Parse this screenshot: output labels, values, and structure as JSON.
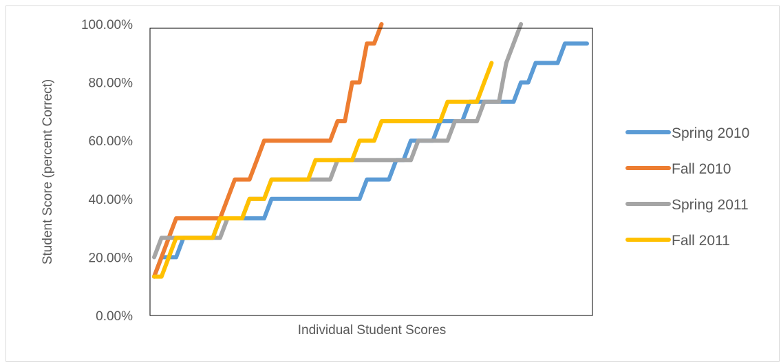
{
  "chart_data": {
    "type": "line",
    "title": "",
    "xlabel": "Individual Student Scores",
    "ylabel": "Student Score (percent Correct)",
    "ylim": [
      0,
      100
    ],
    "yticks": [
      0,
      20,
      40,
      60,
      80,
      100
    ],
    "ytick_labels": [
      "0.00%",
      "20.00%",
      "40.00%",
      "60.00%",
      "80.00%",
      "100.00%"
    ],
    "grid": false,
    "legend_position": "right",
    "series": [
      {
        "name": "Spring 2010",
        "color": "#5b9bd5",
        "values": [
          13.33,
          20,
          20,
          20,
          26.67,
          26.67,
          26.67,
          26.67,
          26.67,
          33.33,
          33.33,
          33.33,
          33.33,
          33.33,
          33.33,
          33.33,
          40,
          40,
          40,
          40,
          40,
          40,
          40,
          40,
          40,
          40,
          40,
          40,
          40,
          46.67,
          46.67,
          46.67,
          46.67,
          53.33,
          53.33,
          60,
          60,
          60,
          60,
          66.67,
          66.67,
          66.67,
          66.67,
          73.33,
          73.33,
          73.33,
          73.33,
          73.33,
          73.33,
          73.33,
          80,
          80,
          86.67,
          86.67,
          86.67,
          86.67,
          93.33,
          93.33,
          93.33,
          93.33
        ]
      },
      {
        "name": "Fall 2010",
        "color": "#ed7d31",
        "values": [
          13.33,
          20,
          26.67,
          33.33,
          33.33,
          33.33,
          33.33,
          33.33,
          33.33,
          33.33,
          40,
          46.67,
          46.67,
          46.67,
          53.33,
          60,
          60,
          60,
          60,
          60,
          60,
          60,
          60,
          60,
          60,
          66.67,
          66.67,
          80,
          80,
          93.33,
          93.33,
          100
        ]
      },
      {
        "name": "Spring 2011",
        "color": "#a5a5a5",
        "values": [
          20,
          26.67,
          26.67,
          26.67,
          26.67,
          26.67,
          26.67,
          26.67,
          26.67,
          26.67,
          33.33,
          33.33,
          33.33,
          40,
          40,
          40,
          46.67,
          46.67,
          46.67,
          46.67,
          46.67,
          46.67,
          46.67,
          46.67,
          46.67,
          53.33,
          53.33,
          53.33,
          53.33,
          53.33,
          53.33,
          53.33,
          53.33,
          53.33,
          53.33,
          53.33,
          60,
          60,
          60,
          60,
          60,
          66.67,
          66.67,
          66.67,
          66.67,
          73.33,
          73.33,
          73.33,
          86.67,
          93.33,
          100
        ]
      },
      {
        "name": "Fall 2011",
        "color": "#ffc000",
        "values": [
          13.33,
          13.33,
          20,
          26.67,
          26.67,
          26.67,
          26.67,
          26.67,
          26.67,
          33.33,
          33.33,
          33.33,
          33.33,
          40,
          40,
          40,
          46.67,
          46.67,
          46.67,
          46.67,
          46.67,
          46.67,
          53.33,
          53.33,
          53.33,
          53.33,
          53.33,
          53.33,
          60,
          60,
          60,
          66.67,
          66.67,
          66.67,
          66.67,
          66.67,
          66.67,
          66.67,
          66.67,
          66.67,
          73.33,
          73.33,
          73.33,
          73.33,
          73.33,
          80,
          86.67
        ]
      }
    ]
  }
}
